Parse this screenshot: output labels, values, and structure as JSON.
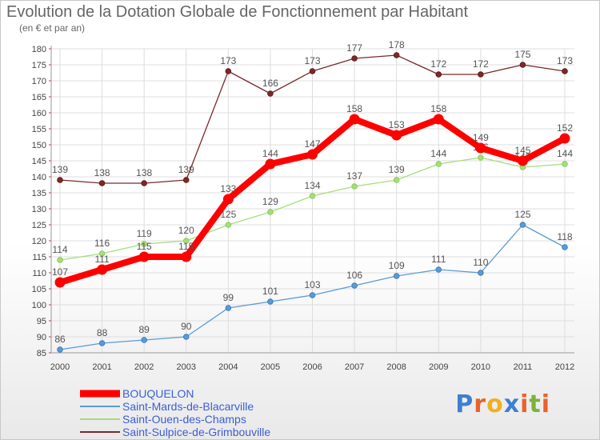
{
  "chart_data": {
    "type": "line",
    "title": "Evolution de la Dotation Globale de Fonctionnement par Habitant",
    "subtitle": "(en € et par an)",
    "xlabel": "",
    "ylabel": "",
    "ylim": [
      85,
      180
    ],
    "ytick_step": 5,
    "categories": [
      "2000",
      "2001",
      "2002",
      "2003",
      "2004",
      "2005",
      "2006",
      "2007",
      "2008",
      "2009",
      "2010",
      "2011",
      "2012"
    ],
    "grid": true,
    "legend_position": "bottom-left",
    "series": [
      {
        "name": "BOUQUELON",
        "color": "#ff0000",
        "values": [
          107,
          111,
          115,
          115,
          133,
          144,
          147,
          158,
          153,
          158,
          149,
          145,
          152
        ],
        "emphasis": true
      },
      {
        "name": "Saint-Mards-de-Blacarville",
        "color": "#5b9bd5",
        "point_color": "#3a7fc0",
        "values": [
          86,
          88,
          89,
          90,
          99,
          101,
          103,
          106,
          109,
          111,
          110,
          125,
          118
        ]
      },
      {
        "name": "Saint-Ouen-des-Champs",
        "color": "#a6dd7c",
        "point_color": "#88cc55",
        "values": [
          114,
          116,
          119,
          120,
          125,
          129,
          134,
          137,
          139,
          144,
          146,
          143,
          144
        ]
      },
      {
        "name": "Saint-Sulpice-de-Grimbouville",
        "color": "#7a2a2a",
        "point_color": "#661818",
        "values": [
          139,
          138,
          138,
          139,
          173,
          166,
          173,
          177,
          178,
          172,
          172,
          175,
          173
        ]
      }
    ]
  },
  "brand": {
    "letters": [
      "P",
      "r",
      "o",
      "x",
      "i",
      "t",
      "i"
    ],
    "colors": [
      "#3f7fd0",
      "#e8622a",
      "#f0b020",
      "#3f7fd0",
      "#e8622a",
      "#7ab33a",
      "#e8622a"
    ]
  }
}
